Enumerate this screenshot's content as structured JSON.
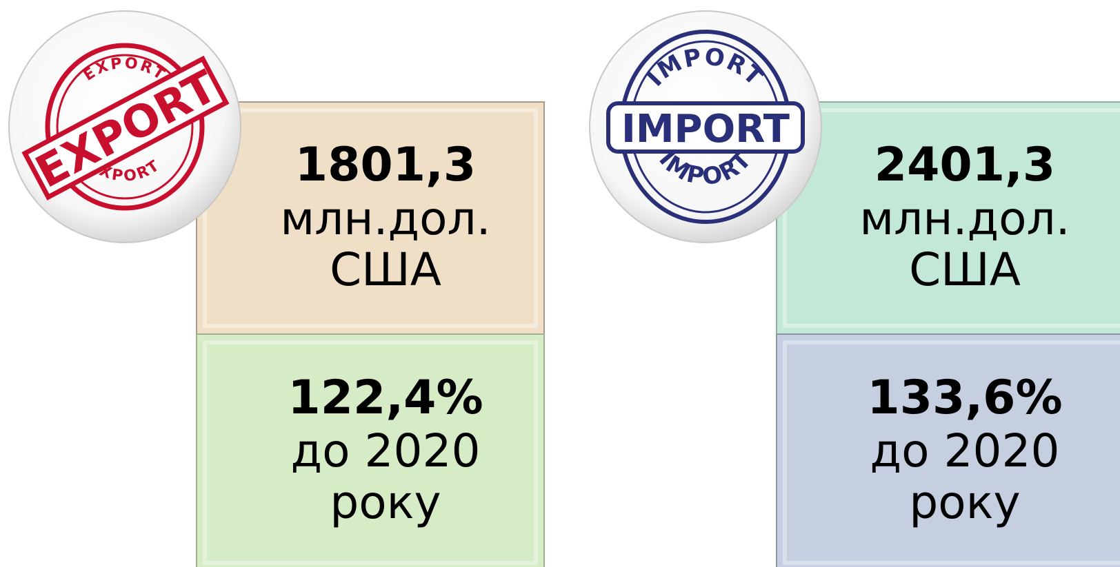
{
  "export": {
    "stamp": "EXPORT",
    "value": "1801,3",
    "unit_line1": "млн.дол.",
    "unit_line2": "США",
    "percent": "122,4%",
    "compare_line1": "до 2020",
    "compare_line2": "року"
  },
  "import": {
    "stamp": "IMPORT",
    "value": "2401,3",
    "unit_line1": "млн.дол.",
    "unit_line2": "США",
    "percent": "133,6%",
    "compare_line1": "до 2020",
    "compare_line2": "року"
  }
}
